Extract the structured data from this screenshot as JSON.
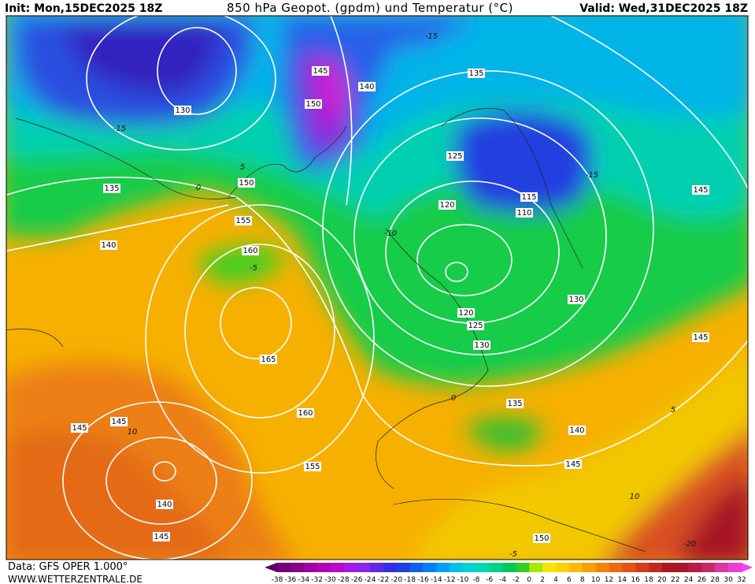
{
  "header": {
    "init": "Init: Mon,15DEC2025 18Z",
    "title": "850 hPa Geopot. (gpdm) und Temperatur (°C)",
    "valid": "Valid: Wed,31DEC2025 18Z"
  },
  "contour_labels": [
    145,
    140,
    135,
    150,
    130,
    125,
    115,
    110,
    120,
    135,
    150,
    145,
    155,
    140,
    160,
    130,
    120,
    125,
    130,
    145,
    165,
    135,
    160,
    140,
    145,
    145,
    145,
    155,
    140,
    150,
    145
  ],
  "temperature_labels": [
    -15,
    -15,
    -15,
    -10,
    -5,
    0,
    0,
    -5,
    5,
    10,
    10,
    -20,
    5
  ],
  "colorbar": {
    "labels": [
      -38,
      -36,
      -34,
      -32,
      -30,
      -28,
      -26,
      -24,
      -22,
      -20,
      -18,
      -16,
      -14,
      -12,
      -10,
      -8,
      -6,
      -4,
      -2,
      0,
      2,
      4,
      6,
      8,
      10,
      12,
      14,
      16,
      18,
      20,
      22,
      24,
      26,
      28,
      30,
      32
    ]
  },
  "footer": {
    "data": "Data: GFS OPER 1.000°",
    "site": "WWW.WETTERZENTRALE.DE"
  }
}
